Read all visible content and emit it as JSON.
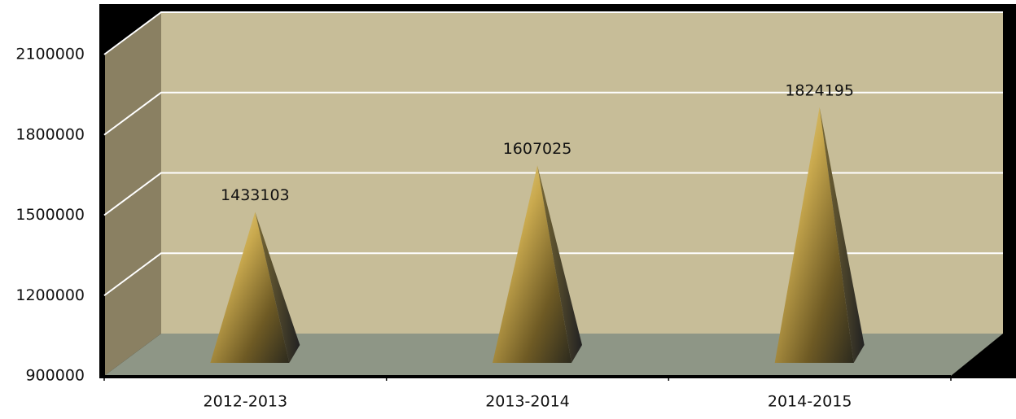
{
  "chart_data": {
    "type": "pyramid",
    "categories": [
      "2012-2013",
      "2013-2014",
      "2014-2015"
    ],
    "values": [
      1433103,
      1607025,
      1824195
    ],
    "ylim": [
      900000,
      2100000
    ],
    "yticks": [
      900000,
      1200000,
      1500000,
      1800000,
      2100000
    ],
    "grid": true
  }
}
